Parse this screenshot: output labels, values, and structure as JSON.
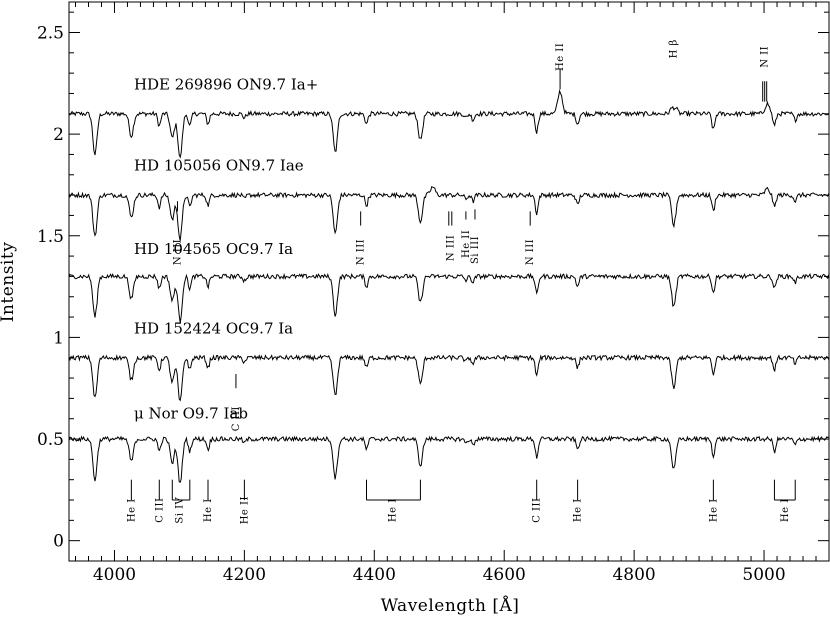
{
  "chart_data": {
    "type": "line",
    "title": "",
    "xlabel": "Wavelength [Å]",
    "ylabel": "Intensity",
    "xlim": [
      3930,
      5100
    ],
    "ylim": [
      -0.1,
      2.65
    ],
    "x_ticks": [
      4000,
      4200,
      4400,
      4600,
      4800,
      5000
    ],
    "x_tick_labels": [
      "4000",
      "4200",
      "4400",
      "4600",
      "4800",
      "5000"
    ],
    "y_ticks": [
      0,
      0.5,
      1,
      1.5,
      2,
      2.5
    ],
    "y_tick_labels": [
      "0",
      "0.5",
      "1",
      "1.5",
      "2",
      "2.5"
    ],
    "series": [
      {
        "name": "HDE 269896  ON9.7 Ia+",
        "offset": 2.1,
        "label_x": 4030,
        "label_y": 2.22
      },
      {
        "name": "HD 105056  ON9.7 Iae",
        "offset": 1.7,
        "label_x": 4030,
        "label_y": 1.82
      },
      {
        "name": "HD 104565  OC9.7 Ia",
        "offset": 1.3,
        "label_x": 4030,
        "label_y": 1.41
      },
      {
        "name": "HD 152424  OC9.7 Ia",
        "offset": 0.9,
        "label_x": 4030,
        "label_y": 1.02
      },
      {
        "name": "μ Nor        O9.7 Iab",
        "offset": 0.5,
        "label_x": 4030,
        "label_y": 0.6
      }
    ],
    "absorption_lines": [
      {
        "w": 3970,
        "d": 0.2
      },
      {
        "w": 4026,
        "d": 0.11
      },
      {
        "w": 4069,
        "d": 0.06
      },
      {
        "w": 4089,
        "d": 0.12
      },
      {
        "w": 4101,
        "d": 0.22
      },
      {
        "w": 4116,
        "d": 0.06
      },
      {
        "w": 4144,
        "d": 0.05
      },
      {
        "w": 4200,
        "d": 0.02
      },
      {
        "w": 4340,
        "d": 0.19
      },
      {
        "w": 4388,
        "d": 0.05
      },
      {
        "w": 4471,
        "d": 0.13
      },
      {
        "w": 4541,
        "d": 0.02
      },
      {
        "w": 4552,
        "d": 0.03
      },
      {
        "w": 4650,
        "d": 0.09
      },
      {
        "w": 4713,
        "d": 0.05
      },
      {
        "w": 4861,
        "d": 0.15
      },
      {
        "w": 4922,
        "d": 0.08
      },
      {
        "w": 5016,
        "d": 0.06
      },
      {
        "w": 5048,
        "d": 0.03
      }
    ],
    "emission_lines": [
      {
        "w": 4686,
        "h": 0.11,
        "series": 0
      },
      {
        "w": 4861,
        "h": 0.18,
        "series": 0
      },
      {
        "w": 5005,
        "h": 0.05,
        "series": 0
      },
      {
        "w": 4490,
        "h": 0.04,
        "series": 1
      },
      {
        "w": 5005,
        "h": 0.03,
        "series": 1
      }
    ],
    "top_annotations": [
      {
        "label": "He II",
        "w": 4686,
        "y1": 2.22,
        "y2": 2.32,
        "text_y": 2.38
      },
      {
        "label": "H β",
        "w": 4861,
        "y1": 2.35,
        "y2": 2.35,
        "text_y": 2.42
      },
      {
        "label": "N II",
        "w": 5001,
        "y1": 2.16,
        "y2": 2.26,
        "text_y": 2.38,
        "triple": true
      }
    ],
    "middle_annotations": [
      {
        "label": "N III",
        "w": 4097,
        "y1": 1.62,
        "y2": 1.67,
        "text_y": 1.42
      },
      {
        "label": "N III",
        "w": 4379,
        "y1": 1.55,
        "y2": 1.62,
        "text_y": 1.42
      },
      {
        "label": "N III",
        "w": 4517,
        "y1": 1.55,
        "y2": 1.62,
        "text_y": 1.44,
        "double": true
      },
      {
        "label": "He II",
        "w": 4541,
        "y1": 1.58,
        "y2": 1.62,
        "text_y": 1.46
      },
      {
        "label": "Si III",
        "w": 4555,
        "y1": 1.58,
        "y2": 1.63,
        "text_y": 1.43
      },
      {
        "label": "N III",
        "w": 4640,
        "y1": 1.55,
        "y2": 1.62,
        "text_y": 1.42
      },
      {
        "label": "C III",
        "w": 4187,
        "y1": 0.75,
        "y2": 0.82,
        "text_y": 0.6
      }
    ],
    "bottom_annotations": [
      {
        "label": "He I",
        "w": 4026,
        "text_y": 0.15
      },
      {
        "label": "C III",
        "w": 4069,
        "text_y": 0.15
      },
      {
        "label": "Si IV",
        "w": 4100,
        "text_y": 0.15,
        "bracket": [
          4089,
          4116
        ]
      },
      {
        "label": "He I",
        "w": 4144,
        "text_y": 0.15
      },
      {
        "label": "He II",
        "w": 4200,
        "text_y": 0.15
      },
      {
        "label": "He I",
        "w": 4428,
        "text_y": 0.15,
        "bracket": [
          4388,
          4471
        ]
      },
      {
        "label": "C III",
        "w": 4650,
        "text_y": 0.15
      },
      {
        "label": "He I",
        "w": 4713,
        "text_y": 0.15
      },
      {
        "label": "He I",
        "w": 4922,
        "text_y": 0.15
      },
      {
        "label": "He I",
        "w": 5032,
        "text_y": 0.15,
        "bracket": [
          5016,
          5048
        ]
      }
    ],
    "grid": false,
    "legend": "none"
  }
}
